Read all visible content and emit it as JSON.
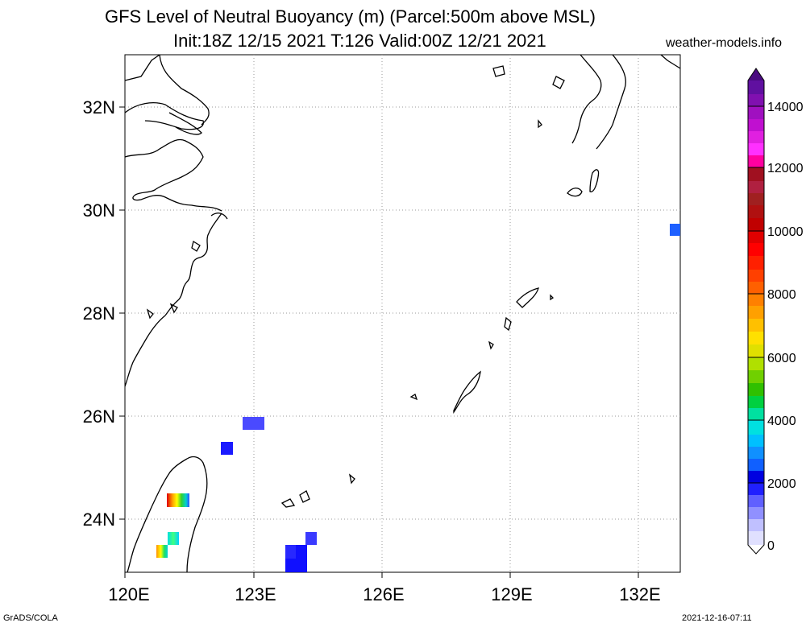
{
  "header": {
    "title_line1": "GFS Level of Neutral Buoyancy (m) (Parcel:500m above MSL)",
    "title_line2": "Init:18Z 12/15 2021 T:126 Valid:00Z 12/21 2021",
    "site": "weather-models.info"
  },
  "footer": {
    "left": "GrADS/COLA",
    "right": "2021-12-16-07:11"
  },
  "map": {
    "lat_labels": [
      "32N",
      "30N",
      "28N",
      "26N",
      "24N"
    ],
    "lon_labels": [
      "120E",
      "123E",
      "126E",
      "129E",
      "132E"
    ]
  },
  "colorbar": {
    "labels": [
      "0",
      "2000",
      "4000",
      "6000",
      "8000",
      "10000",
      "12000",
      "14000"
    ]
  }
}
